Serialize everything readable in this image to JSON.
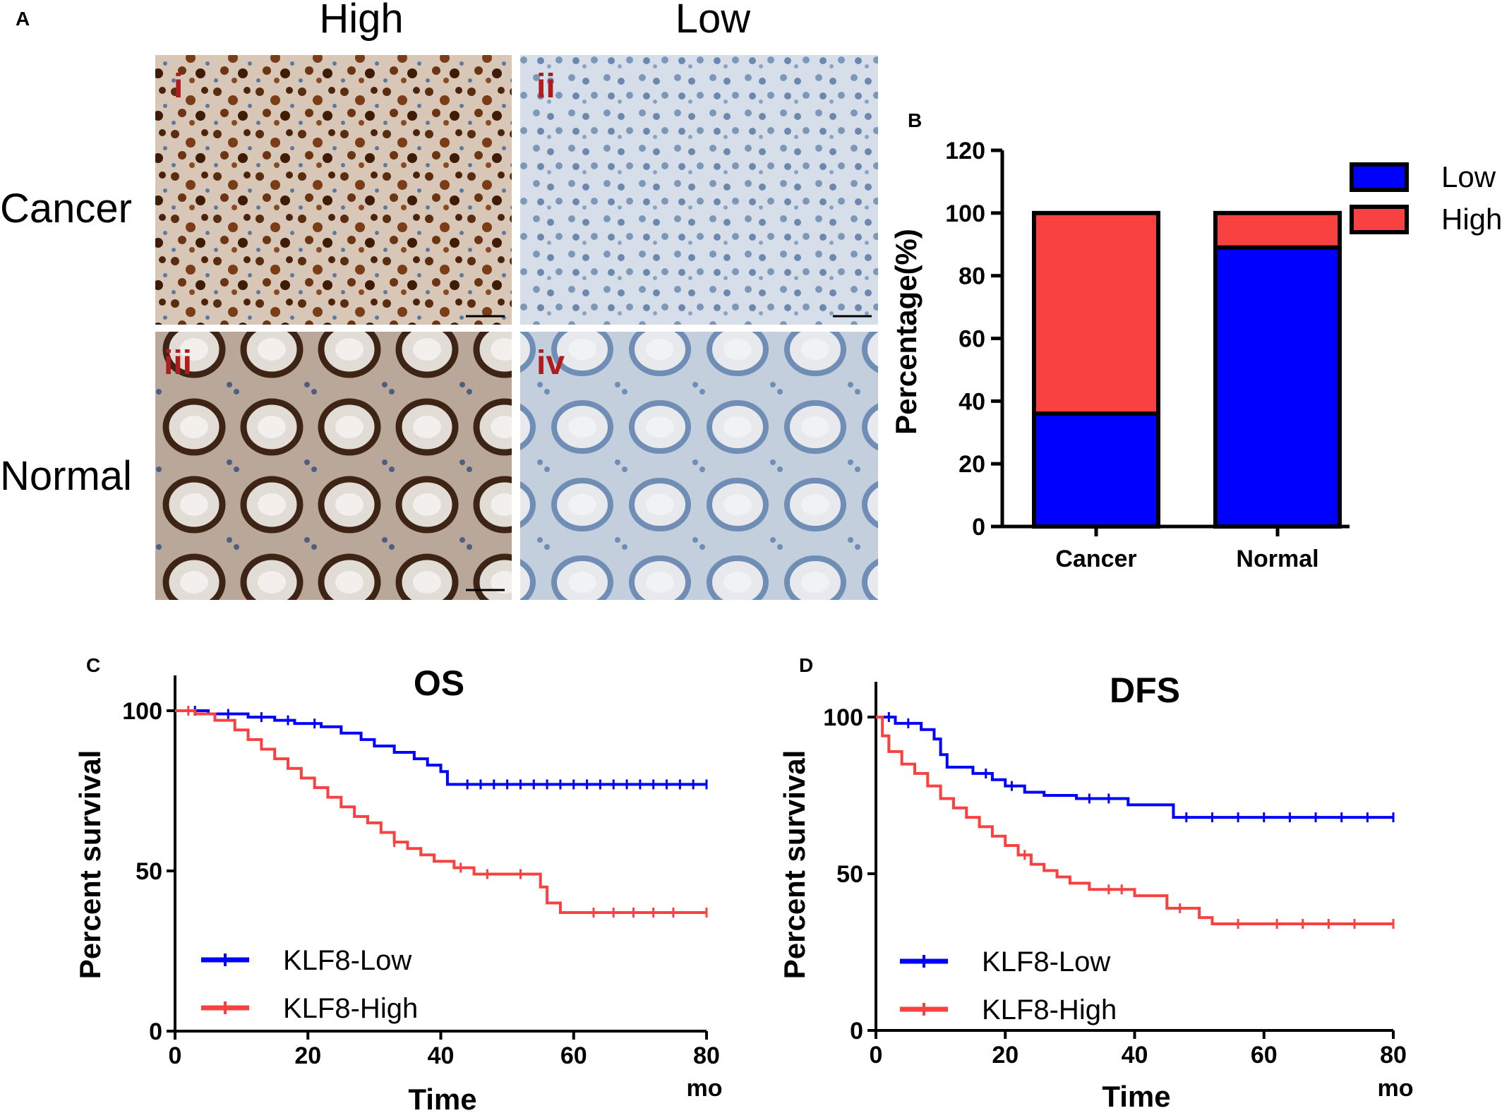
{
  "panels": {
    "A": {
      "label": "A",
      "columns": [
        "High",
        "Low"
      ],
      "rows": [
        "Cancer",
        "Normal"
      ],
      "tiles": [
        "i",
        "ii",
        "iii",
        "iv"
      ]
    },
    "B": {
      "label": "B"
    },
    "C": {
      "label": "C"
    },
    "D": {
      "label": "D"
    }
  },
  "chart_data": [
    {
      "id": "B",
      "type": "bar",
      "stacked": true,
      "categories": [
        "Cancer",
        "Normal"
      ],
      "series": [
        {
          "name": "Low",
          "values": [
            36,
            89
          ],
          "color": "#0000ff"
        },
        {
          "name": "High",
          "values": [
            64,
            11
          ],
          "color": "#f94141"
        }
      ],
      "ylabel": "Percentage(%)",
      "ylim": [
        0,
        120
      ],
      "yticks": [
        "0",
        "20",
        "40",
        "60",
        "80",
        "100",
        "120"
      ],
      "legend": "top-right"
    },
    {
      "id": "C",
      "type": "line",
      "step": true,
      "title": "OS",
      "xlabel": "Time",
      "xunit": "mo",
      "ylabel": "Percent survival",
      "xlim": [
        0,
        80
      ],
      "ylim": [
        0,
        100
      ],
      "xticks": [
        "0",
        "20",
        "40",
        "60",
        "80"
      ],
      "yticks": [
        "0",
        "50",
        "100"
      ],
      "legend": "bottom-left",
      "series": [
        {
          "name": "KLF8-Low",
          "color": "#0000ff",
          "x": [
            0,
            5,
            11,
            15,
            18,
            22,
            25,
            28,
            30,
            33,
            36,
            38,
            40,
            41,
            80
          ],
          "y": [
            100,
            99,
            98,
            97,
            96,
            95,
            93,
            91,
            89,
            87,
            85,
            83,
            81,
            77,
            77
          ],
          "censored_x": [
            3,
            8,
            13,
            17,
            21,
            44,
            46,
            48,
            50,
            52,
            54,
            56,
            58,
            60,
            62,
            64,
            66,
            68,
            70,
            72,
            74,
            76,
            78,
            80
          ]
        },
        {
          "name": "KLF8-High",
          "color": "#f94141",
          "x": [
            0,
            3,
            6,
            9,
            11,
            13,
            15,
            17,
            19,
            21,
            23,
            25,
            27,
            29,
            31,
            33,
            35,
            37,
            39,
            42,
            45,
            55,
            56,
            58,
            80
          ],
          "y": [
            100,
            99,
            97,
            94,
            91,
            88,
            85,
            82,
            79,
            76,
            73,
            70,
            67,
            65,
            62,
            59,
            57,
            55,
            53,
            51,
            49,
            45,
            40,
            37,
            37
          ],
          "censored_x": [
            2,
            33,
            43,
            47,
            52,
            63,
            66,
            69,
            72,
            75,
            80
          ]
        }
      ]
    },
    {
      "id": "D",
      "type": "line",
      "step": true,
      "title": "DFS",
      "xlabel": "Time",
      "xunit": "mo",
      "ylabel": "Percent survival",
      "xlim": [
        0,
        80
      ],
      "ylim": [
        0,
        100
      ],
      "xticks": [
        "0",
        "20",
        "40",
        "60",
        "80"
      ],
      "yticks": [
        "0",
        "50",
        "100"
      ],
      "legend": "bottom-left",
      "series": [
        {
          "name": "KLF8-Low",
          "color": "#0000ff",
          "x": [
            0,
            3,
            7,
            9,
            10,
            11,
            15,
            18,
            20,
            23,
            26,
            31,
            39,
            46,
            80
          ],
          "y": [
            100,
            98,
            96,
            93,
            88,
            84,
            82,
            80,
            78,
            76,
            75,
            74,
            72,
            68,
            68
          ],
          "censored_x": [
            2,
            5,
            17,
            21,
            33,
            36,
            48,
            52,
            56,
            60,
            64,
            68,
            72,
            76,
            80
          ]
        },
        {
          "name": "KLF8-High",
          "color": "#f94141",
          "x": [
            0,
            1,
            2,
            4,
            6,
            8,
            10,
            12,
            14,
            16,
            18,
            20,
            22,
            24,
            26,
            28,
            30,
            33,
            40,
            45,
            50,
            52,
            80
          ],
          "y": [
            100,
            94,
            89,
            85,
            82,
            78,
            74,
            71,
            68,
            65,
            62,
            59,
            56,
            53,
            51,
            49,
            47,
            45,
            43,
            39,
            36,
            34,
            34
          ],
          "censored_x": [
            23,
            36,
            38,
            47,
            56,
            62,
            66,
            70,
            74,
            80
          ]
        }
      ]
    }
  ],
  "colors": {
    "low": "#0000ff",
    "high": "#f94141"
  }
}
